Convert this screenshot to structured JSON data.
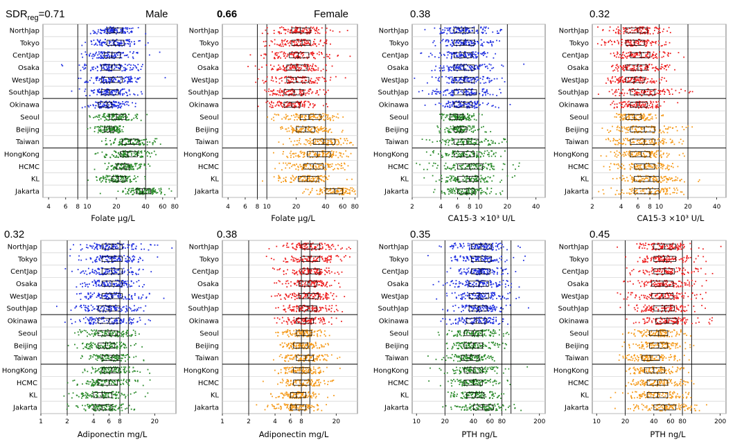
{
  "regions": [
    "NorthJap",
    "Tokyo",
    "CentJap",
    "Osaka",
    "WestJap",
    "SouthJap",
    "Okinawa",
    "Seoul",
    "Beijing",
    "Taiwan",
    "HongKong",
    "HCMC",
    "KL",
    "Jakarta"
  ],
  "colors": {
    "japan_male": "#1f2fe0",
    "japan_female": "#ee2020",
    "other_male": "#2a8a2a",
    "other_female": "#f59a1a",
    "box": "#000000"
  },
  "sdr": {
    "prefix": "SDR",
    "subscript": "reg",
    "joiner": "="
  },
  "chart_data": [
    {
      "type": "scatter",
      "sex": "Male",
      "sdr": "0.71",
      "xlabel": "Folate   μg/L",
      "scale": "log",
      "xlim": [
        3.5,
        85
      ],
      "ticks": [
        4,
        6,
        8,
        10,
        20,
        40,
        60,
        80
      ],
      "tick_labels": [
        "4",
        "6",
        "8",
        "10",
        "20",
        "40",
        "60",
        "80"
      ],
      "vlines": [
        8,
        10,
        40
      ],
      "boxes": [
        [
          16,
          19,
          23
        ],
        [
          16,
          19,
          24
        ],
        [
          15,
          18,
          22
        ],
        [
          14,
          18,
          22
        ],
        [
          14,
          18,
          23
        ],
        [
          14,
          17,
          21
        ],
        [
          13,
          16,
          18
        ],
        [
          17,
          20,
          25
        ],
        [
          15,
          17,
          19
        ],
        [
          23,
          28,
          34
        ],
        [
          22,
          26,
          33
        ],
        [
          20,
          24,
          27
        ],
        [
          18,
          21,
          25
        ],
        [
          32,
          37,
          45
        ]
      ]
    },
    {
      "type": "scatter",
      "sex": "Female",
      "sdr": "0.66",
      "xlabel": "Folate   μg/L",
      "scale": "log",
      "xlim": [
        3.5,
        85
      ],
      "ticks": [
        4,
        6,
        8,
        10,
        20,
        40,
        60,
        80
      ],
      "tick_labels": [
        "4",
        "6",
        "8",
        "10",
        "20",
        "40",
        "60",
        "80"
      ],
      "vlines": [
        8,
        10,
        40
      ],
      "boxes": [
        [
          18,
          22,
          28
        ],
        [
          18,
          23,
          28
        ],
        [
          17,
          21,
          27
        ],
        [
          16,
          20,
          26
        ],
        [
          16,
          20,
          27
        ],
        [
          15,
          19,
          24
        ],
        [
          15,
          18,
          22
        ],
        [
          22,
          27,
          36
        ],
        [
          20,
          25,
          31
        ],
        [
          30,
          38,
          50
        ],
        [
          26,
          33,
          45
        ],
        [
          24,
          30,
          38
        ],
        [
          21,
          26,
          34
        ],
        [
          40,
          50,
          60
        ]
      ]
    },
    {
      "type": "scatter",
      "sex": "",
      "sdr": "0.38",
      "xlabel": "CA15-3   ×10³ U/L",
      "scale": "log",
      "xlim": [
        2,
        50
      ],
      "ticks": [
        2,
        4,
        6,
        8,
        10,
        20,
        40
      ],
      "tick_labels": [
        "2",
        "4",
        "6",
        "8",
        "10",
        "20",
        "40"
      ],
      "vlines": [
        4,
        10,
        20
      ],
      "boxes": [
        [
          5.5,
          7,
          9
        ],
        [
          5.5,
          7,
          9
        ],
        [
          5.5,
          7,
          8.5
        ],
        [
          5.5,
          7,
          9
        ],
        [
          5.5,
          7,
          9
        ],
        [
          5.5,
          7,
          9.5
        ],
        [
          5.5,
          7,
          8.5
        ],
        [
          5,
          6,
          7
        ],
        [
          5.5,
          6.5,
          7.5
        ],
        [
          5.5,
          7.5,
          10
        ],
        [
          5.5,
          7,
          9
        ],
        [
          6,
          8,
          11
        ],
        [
          6,
          8,
          10
        ],
        [
          6,
          7.5,
          9
        ]
      ]
    },
    {
      "type": "scatter",
      "sex": "",
      "sdr": "0.32",
      "xlabel": "CA15-3   ×10³ U/L",
      "scale": "log",
      "xlim": [
        2,
        50
      ],
      "ticks": [
        2,
        4,
        6,
        8,
        10,
        20,
        40
      ],
      "tick_labels": [
        "2",
        "4",
        "6",
        "8",
        "10",
        "20",
        "40"
      ],
      "vlines": [
        4,
        10,
        20
      ],
      "boxes": [
        [
          4.5,
          6,
          7.5
        ],
        [
          4.5,
          5.5,
          7
        ],
        [
          5,
          6.5,
          8
        ],
        [
          4.5,
          6,
          7.5
        ],
        [
          4.5,
          5.5,
          7
        ],
        [
          5,
          7,
          9
        ],
        [
          5,
          6,
          7.5
        ],
        [
          4.5,
          5.5,
          6.5
        ],
        [
          5,
          7,
          9
        ],
        [
          5,
          7,
          9
        ],
        [
          5,
          6.5,
          8
        ],
        [
          5.5,
          7,
          9
        ],
        [
          5.5,
          8,
          10
        ],
        [
          5.5,
          8,
          10
        ]
      ]
    },
    {
      "type": "scatter",
      "sex": "",
      "sdr": "0.32",
      "xlabel": "Adiponectin   mg/L",
      "scale": "log",
      "xlim": [
        1,
        35
      ],
      "ticks": [
        1,
        2,
        4,
        6,
        8,
        20
      ],
      "tick_labels": [
        "1",
        "2",
        "4",
        "6",
        "8",
        "20"
      ],
      "vlines": [
        2,
        8,
        10
      ],
      "boxes": [
        [
          5,
          6.5,
          8.5
        ],
        [
          5,
          6.5,
          8.5
        ],
        [
          5,
          6.5,
          8.5
        ],
        [
          5,
          6.5,
          8.5
        ],
        [
          5,
          6.5,
          8.5
        ],
        [
          4.5,
          6,
          8
        ],
        [
          4.5,
          6,
          8
        ],
        [
          4.5,
          6,
          7.5
        ],
        [
          4.5,
          5.5,
          7
        ],
        [
          5,
          6.5,
          8
        ],
        [
          5,
          6.5,
          8
        ],
        [
          4.5,
          6,
          7.5
        ],
        [
          4,
          5,
          6.5
        ],
        [
          4,
          5,
          6.5
        ]
      ]
    },
    {
      "type": "scatter",
      "sex": "",
      "sdr": "0.38",
      "xlabel": "Adiponectin   mg/L",
      "scale": "log",
      "xlim": [
        1,
        35
      ],
      "ticks": [
        1,
        2,
        4,
        6,
        8,
        20
      ],
      "tick_labels": [
        "1",
        "2",
        "4",
        "6",
        "8",
        "20"
      ],
      "vlines": [
        2,
        8,
        10
      ],
      "boxes": [
        [
          8,
          10,
          13
        ],
        [
          8,
          10,
          13
        ],
        [
          8,
          10,
          13
        ],
        [
          7.5,
          9.5,
          12
        ],
        [
          7.5,
          9.5,
          12.5
        ],
        [
          7.5,
          9.5,
          12
        ],
        [
          7,
          9,
          11
        ],
        [
          7,
          8.5,
          10.5
        ],
        [
          6.5,
          8,
          9.5
        ],
        [
          7,
          9,
          11
        ],
        [
          6.5,
          8,
          10
        ],
        [
          6.5,
          8,
          10
        ],
        [
          6,
          7,
          9
        ],
        [
          6,
          7,
          9
        ]
      ]
    },
    {
      "type": "scatter",
      "sex": "",
      "sdr": "0.35",
      "xlabel": "PTH   ng/L",
      "scale": "log",
      "xlim": [
        9,
        230
      ],
      "ticks": [
        10,
        20,
        40,
        60,
        80,
        200
      ],
      "tick_labels": [
        "10",
        "20",
        "40",
        "60",
        "80",
        "200"
      ],
      "vlines": [
        20,
        80,
        100
      ],
      "boxes": [
        [
          38,
          48,
          62
        ],
        [
          38,
          48,
          62
        ],
        [
          38,
          48,
          60
        ],
        [
          36,
          46,
          58
        ],
        [
          36,
          46,
          58
        ],
        [
          36,
          45,
          56
        ],
        [
          34,
          43,
          55
        ],
        [
          32,
          40,
          50
        ],
        [
          32,
          40,
          50
        ],
        [
          30,
          37,
          46
        ],
        [
          32,
          40,
          50
        ],
        [
          32,
          40,
          50
        ],
        [
          34,
          42,
          52
        ],
        [
          40,
          50,
          65
        ]
      ]
    },
    {
      "type": "scatter",
      "sex": "",
      "sdr": "0.45",
      "xlabel": "PTH   ng/L",
      "scale": "log",
      "xlim": [
        9,
        230
      ],
      "ticks": [
        10,
        20,
        40,
        60,
        80,
        200
      ],
      "tick_labels": [
        "10",
        "20",
        "40",
        "60",
        "80",
        "200"
      ],
      "vlines": [
        20,
        80,
        100
      ],
      "boxes": [
        [
          40,
          52,
          68
        ],
        [
          40,
          52,
          68
        ],
        [
          40,
          52,
          66
        ],
        [
          38,
          50,
          64
        ],
        [
          38,
          50,
          64
        ],
        [
          40,
          52,
          66
        ],
        [
          42,
          55,
          70
        ],
        [
          36,
          45,
          56
        ],
        [
          36,
          45,
          56
        ],
        [
          30,
          37,
          46
        ],
        [
          32,
          40,
          52
        ],
        [
          34,
          44,
          56
        ],
        [
          34,
          44,
          56
        ],
        [
          40,
          52,
          68
        ]
      ]
    }
  ]
}
